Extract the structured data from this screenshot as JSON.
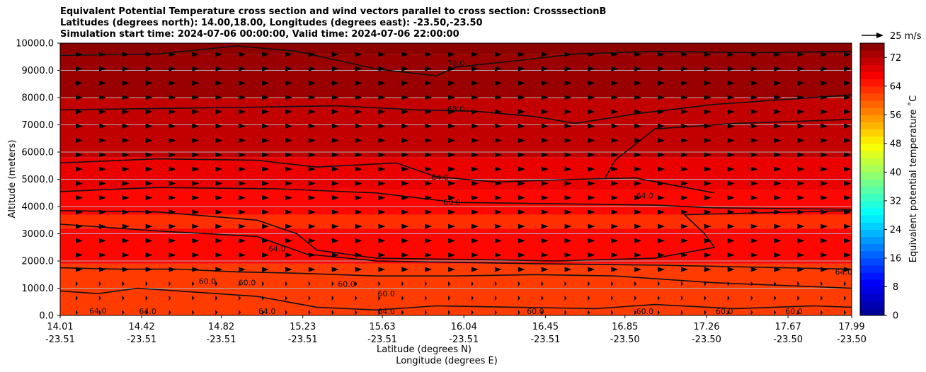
{
  "colors": {
    "grid": "#b0b0b0",
    "contour": "#111111",
    "arrow": "#000000",
    "colormap": [
      "#00008f",
      "#0000ff",
      "#007fff",
      "#00ffff",
      "#7fff7f",
      "#ffff00",
      "#ff7f00",
      "#ff0000",
      "#7f0000"
    ]
  },
  "chart_data": {
    "type": "contour",
    "title_lines": [
      "Equivalent Potential Temperature cross section and wind vectors parallel to cross section: CrosssectionB",
      "Latitudes (degrees north): 14.00,18.00, Longitudes (degrees east): -23.50,-23.50",
      "Simulation start time: 2024-07-06 00:00:00, Valid time: 2024-07-06 22:00:00"
    ],
    "xlabel": "Latitude (degrees N)",
    "xlabel2": "Longitude (degrees E)",
    "ylabel": "Altitude (meters)",
    "x_range": [
      14.01,
      17.99
    ],
    "y_range": [
      0,
      10000
    ],
    "x_ticks": [
      {
        "lat": "14.01",
        "lon": "-23.51",
        "value": 14.01
      },
      {
        "lat": "14.42",
        "lon": "-23.51",
        "value": 14.42
      },
      {
        "lat": "14.82",
        "lon": "-23.51",
        "value": 14.82
      },
      {
        "lat": "15.23",
        "lon": "-23.51",
        "value": 15.23
      },
      {
        "lat": "15.63",
        "lon": "-23.51",
        "value": 15.63
      },
      {
        "lat": "16.04",
        "lon": "-23.51",
        "value": 16.04
      },
      {
        "lat": "16.45",
        "lon": "-23.51",
        "value": 16.45
      },
      {
        "lat": "16.85",
        "lon": "-23.50",
        "value": 16.85
      },
      {
        "lat": "17.26",
        "lon": "-23.50",
        "value": 17.26
      },
      {
        "lat": "17.67",
        "lon": "-23.50",
        "value": 17.67
      },
      {
        "lat": "17.99",
        "lon": "-23.50",
        "value": 17.99
      }
    ],
    "y_ticks": [
      "0.0",
      "1000.0",
      "2000.0",
      "3000.0",
      "4000.0",
      "5000.0",
      "6000.0",
      "7000.0",
      "8000.0",
      "9000.0",
      "10000.0"
    ],
    "y_tick_values": [
      0,
      1000,
      2000,
      3000,
      4000,
      5000,
      6000,
      7000,
      8000,
      9000,
      10000
    ],
    "colorbar": {
      "label": "Equivalent potential temperature ˚C",
      "range": [
        0,
        76
      ],
      "ticks": [
        "0",
        "8",
        "16",
        "24",
        "32",
        "40",
        "48",
        "56",
        "64",
        "72"
      ],
      "tick_values": [
        0,
        8,
        16,
        24,
        32,
        40,
        48,
        56,
        64,
        72
      ]
    },
    "wind_legend": "25 m/s",
    "field_layers": [
      {
        "value": 62,
        "y_top": 1900
      },
      {
        "value": 66,
        "y_top": 3200
      },
      {
        "value": 63,
        "y_top": 3700
      },
      {
        "value": 66,
        "y_top": 4600
      },
      {
        "value": 68,
        "y_top": 5800
      },
      {
        "value": 71,
        "y_top": 8000
      },
      {
        "value": 74,
        "y_top": 9600
      },
      {
        "value": 75,
        "y_top": 10000
      }
    ],
    "contours": [
      {
        "level": "72.0",
        "label_at": [
          16.0,
          9150
        ],
        "points": [
          [
            14.01,
            9550
          ],
          [
            14.5,
            9600
          ],
          [
            14.9,
            9900
          ],
          [
            15.2,
            9700
          ],
          [
            15.6,
            9050
          ],
          [
            15.9,
            8800
          ],
          [
            16.0,
            9120
          ],
          [
            16.3,
            9350
          ],
          [
            16.6,
            9600
          ],
          [
            17.0,
            9700
          ],
          [
            17.5,
            9650
          ],
          [
            17.99,
            9700
          ]
        ]
      },
      {
        "level": "68.0",
        "label_at": [
          16.0,
          7480
        ],
        "points": [
          [
            14.01,
            7550
          ],
          [
            14.5,
            7600
          ],
          [
            15.0,
            7650
          ],
          [
            15.4,
            7700
          ],
          [
            15.8,
            7550
          ],
          [
            16.1,
            7500
          ],
          [
            16.4,
            7300
          ],
          [
            16.6,
            7050
          ],
          [
            16.9,
            7400
          ],
          [
            17.3,
            7750
          ],
          [
            17.99,
            8100
          ]
        ]
      },
      {
        "level": "64.0",
        "label_at": [
          15.92,
          4980
        ],
        "points": [
          [
            14.01,
            5600
          ],
          [
            14.5,
            5750
          ],
          [
            15.0,
            5700
          ],
          [
            15.3,
            5450
          ],
          [
            15.7,
            5600
          ],
          [
            15.9,
            5100
          ],
          [
            16.2,
            4900
          ],
          [
            16.6,
            5000
          ],
          [
            16.9,
            5050
          ],
          [
            17.3,
            4500
          ]
        ]
      },
      {
        "level": "60.0",
        "label_at": [
          15.98,
          4050
        ],
        "points": [
          [
            14.01,
            4550
          ],
          [
            14.5,
            4700
          ],
          [
            15.1,
            4650
          ],
          [
            15.6,
            4500
          ],
          [
            16.0,
            4150
          ],
          [
            16.5,
            4100
          ],
          [
            17.0,
            4050
          ],
          [
            17.3,
            3950
          ],
          [
            17.99,
            3900
          ]
        ]
      },
      {
        "level": "64.0",
        "label_at": [
          16.95,
          4300
        ],
        "points": [
          [
            16.75,
            5050
          ],
          [
            16.8,
            5700
          ],
          [
            17.0,
            6850
          ],
          [
            17.4,
            7050
          ],
          [
            17.99,
            7200
          ]
        ]
      },
      {
        "level": "64.0",
        "label_at": [
          15.1,
          2350
        ],
        "points": [
          [
            14.01,
            3850
          ],
          [
            14.5,
            3800
          ],
          [
            15.0,
            3500
          ],
          [
            15.2,
            3000
          ],
          [
            15.3,
            2400
          ],
          [
            15.6,
            2100
          ],
          [
            16.1,
            2050
          ],
          [
            16.5,
            2000
          ],
          [
            17.0,
            2100
          ],
          [
            17.3,
            2500
          ],
          [
            17.25,
            3000
          ],
          [
            17.15,
            3700
          ],
          [
            17.99,
            3850
          ]
        ]
      },
      {
        "level": "60.0",
        "label_at": [
          14.75,
          1150
        ],
        "points": [
          [
            14.01,
            3350
          ],
          [
            14.5,
            3100
          ],
          [
            15.0,
            2900
          ],
          [
            15.25,
            2250
          ],
          [
            15.6,
            2000
          ],
          [
            16.4,
            1900
          ],
          [
            17.0,
            1850
          ],
          [
            17.99,
            1700
          ]
        ]
      },
      {
        "level": "60.0",
        "label_at": [
          14.95,
          1100
        ],
        "points": [
          [
            14.01,
            1750
          ],
          [
            14.3,
            1700
          ],
          [
            14.6,
            1700
          ],
          [
            14.9,
            1600
          ],
          [
            15.2,
            1550
          ],
          [
            15.6,
            1450
          ],
          [
            16.0,
            1450
          ],
          [
            16.4,
            1500
          ],
          [
            16.8,
            1450
          ],
          [
            17.3,
            1200
          ],
          [
            17.99,
            1000
          ]
        ]
      },
      {
        "level": "64.0",
        "label_at": [
          14.2,
          60
        ],
        "points": [
          [
            14.01,
            900
          ],
          [
            14.2,
            800
          ],
          [
            14.4,
            1000
          ],
          [
            14.7,
            850
          ],
          [
            15.0,
            700
          ],
          [
            15.3,
            300
          ],
          [
            15.6,
            200
          ],
          [
            15.9,
            350
          ],
          [
            16.3,
            300
          ],
          [
            16.7,
            250
          ],
          [
            17.0,
            400
          ],
          [
            17.4,
            250
          ],
          [
            17.8,
            350
          ],
          [
            17.99,
            300
          ]
        ]
      }
    ],
    "contour_labels_extra": [
      {
        "text": "64.0",
        "x": 14.45,
        "y": 50
      },
      {
        "text": "64.0",
        "x": 15.05,
        "y": 50
      },
      {
        "text": "64.0",
        "x": 15.65,
        "y": 50
      },
      {
        "text": "64.0",
        "x": 17.95,
        "y": 1500
      },
      {
        "text": "60.0",
        "x": 15.65,
        "y": 700
      },
      {
        "text": "60.0",
        "x": 15.45,
        "y": 1050
      },
      {
        "text": "60.0",
        "x": 16.4,
        "y": 50
      },
      {
        "text": "60.0",
        "x": 16.95,
        "y": 50
      },
      {
        "text": "60.0",
        "x": 17.35,
        "y": 50
      },
      {
        "text": "60.0",
        "x": 17.7,
        "y": 50
      }
    ],
    "wind_vectors": {
      "columns": 34,
      "rows": 19,
      "arrow_ms": 10
    }
  }
}
